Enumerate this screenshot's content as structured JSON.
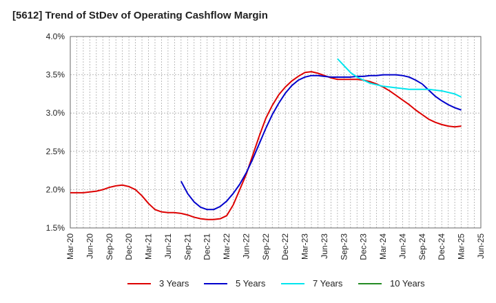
{
  "chart_data": {
    "type": "line",
    "title": "[5612]  Trend of StDev of Operating Cashflow Margin",
    "xlabel": "",
    "ylabel": "",
    "ylim": [
      1.5,
      4.0
    ],
    "y_ticks": [
      "1.5%",
      "2.0%",
      "2.5%",
      "3.0%",
      "3.5%",
      "4.0%"
    ],
    "x_ticks": [
      "Mar-20",
      "Jun-20",
      "Sep-20",
      "Dec-20",
      "Mar-21",
      "Jun-21",
      "Sep-21",
      "Dec-21",
      "Mar-22",
      "Jun-22",
      "Sep-22",
      "Dec-22",
      "Mar-23",
      "Jun-23",
      "Sep-23",
      "Dec-23",
      "Mar-24",
      "Jun-24",
      "Sep-24",
      "Dec-24",
      "Mar-25",
      "Jun-25"
    ],
    "grid": true,
    "legend_position": "bottom",
    "series": [
      {
        "name": "3 Years",
        "color": "#dd0000",
        "points": [
          [
            "2020-03",
            1.96
          ],
          [
            "2020-04",
            1.96
          ],
          [
            "2020-05",
            1.96
          ],
          [
            "2020-06",
            1.97
          ],
          [
            "2020-07",
            1.98
          ],
          [
            "2020-08",
            2.0
          ],
          [
            "2020-09",
            2.03
          ],
          [
            "2020-10",
            2.05
          ],
          [
            "2020-11",
            2.06
          ],
          [
            "2020-12",
            2.04
          ],
          [
            "2021-01",
            2.0
          ],
          [
            "2021-02",
            1.92
          ],
          [
            "2021-03",
            1.82
          ],
          [
            "2021-04",
            1.74
          ],
          [
            "2021-05",
            1.71
          ],
          [
            "2021-06",
            1.7
          ],
          [
            "2021-07",
            1.7
          ],
          [
            "2021-08",
            1.69
          ],
          [
            "2021-09",
            1.67
          ],
          [
            "2021-10",
            1.64
          ],
          [
            "2021-11",
            1.62
          ],
          [
            "2021-12",
            1.61
          ],
          [
            "2022-01",
            1.61
          ],
          [
            "2022-02",
            1.62
          ],
          [
            "2022-03",
            1.66
          ],
          [
            "2022-04",
            1.8
          ],
          [
            "2022-05",
            2.0
          ],
          [
            "2022-06",
            2.2
          ],
          [
            "2022-07",
            2.45
          ],
          [
            "2022-08",
            2.7
          ],
          [
            "2022-09",
            2.93
          ],
          [
            "2022-10",
            3.1
          ],
          [
            "2022-11",
            3.24
          ],
          [
            "2022-12",
            3.34
          ],
          [
            "2023-01",
            3.42
          ],
          [
            "2023-02",
            3.48
          ],
          [
            "2023-03",
            3.53
          ],
          [
            "2023-04",
            3.54
          ],
          [
            "2023-05",
            3.52
          ],
          [
            "2023-06",
            3.49
          ],
          [
            "2023-07",
            3.46
          ],
          [
            "2023-08",
            3.44
          ],
          [
            "2023-09",
            3.44
          ],
          [
            "2023-10",
            3.44
          ],
          [
            "2023-11",
            3.44
          ],
          [
            "2023-12",
            3.43
          ],
          [
            "2024-01",
            3.41
          ],
          [
            "2024-02",
            3.38
          ],
          [
            "2024-03",
            3.34
          ],
          [
            "2024-04",
            3.29
          ],
          [
            "2024-05",
            3.23
          ],
          [
            "2024-06",
            3.17
          ],
          [
            "2024-07",
            3.11
          ],
          [
            "2024-08",
            3.04
          ],
          [
            "2024-09",
            2.98
          ],
          [
            "2024-10",
            2.92
          ],
          [
            "2024-11",
            2.88
          ],
          [
            "2024-12",
            2.85
          ],
          [
            "2025-01",
            2.83
          ],
          [
            "2025-02",
            2.82
          ],
          [
            "2025-03",
            2.83
          ]
        ]
      },
      {
        "name": "5 Years",
        "color": "#0000cc",
        "points": [
          [
            "2021-08",
            2.11
          ],
          [
            "2021-09",
            1.95
          ],
          [
            "2021-10",
            1.84
          ],
          [
            "2021-11",
            1.77
          ],
          [
            "2021-12",
            1.74
          ],
          [
            "2022-01",
            1.74
          ],
          [
            "2022-02",
            1.78
          ],
          [
            "2022-03",
            1.85
          ],
          [
            "2022-04",
            1.95
          ],
          [
            "2022-05",
            2.07
          ],
          [
            "2022-06",
            2.22
          ],
          [
            "2022-07",
            2.4
          ],
          [
            "2022-08",
            2.6
          ],
          [
            "2022-09",
            2.8
          ],
          [
            "2022-10",
            2.98
          ],
          [
            "2022-11",
            3.13
          ],
          [
            "2022-12",
            3.26
          ],
          [
            "2023-01",
            3.36
          ],
          [
            "2023-02",
            3.43
          ],
          [
            "2023-03",
            3.47
          ],
          [
            "2023-04",
            3.49
          ],
          [
            "2023-05",
            3.49
          ],
          [
            "2023-06",
            3.48
          ],
          [
            "2023-07",
            3.47
          ],
          [
            "2023-08",
            3.47
          ],
          [
            "2023-09",
            3.47
          ],
          [
            "2023-10",
            3.47
          ],
          [
            "2023-11",
            3.48
          ],
          [
            "2023-12",
            3.48
          ],
          [
            "2024-01",
            3.49
          ],
          [
            "2024-02",
            3.49
          ],
          [
            "2024-03",
            3.5
          ],
          [
            "2024-04",
            3.5
          ],
          [
            "2024-05",
            3.5
          ],
          [
            "2024-06",
            3.49
          ],
          [
            "2024-07",
            3.47
          ],
          [
            "2024-08",
            3.43
          ],
          [
            "2024-09",
            3.38
          ],
          [
            "2024-10",
            3.3
          ],
          [
            "2024-11",
            3.22
          ],
          [
            "2024-12",
            3.16
          ],
          [
            "2025-01",
            3.11
          ],
          [
            "2025-02",
            3.07
          ],
          [
            "2025-03",
            3.04
          ]
        ]
      },
      {
        "name": "7 Years",
        "color": "#00e5ee",
        "points": [
          [
            "2023-08",
            3.71
          ],
          [
            "2023-09",
            3.62
          ],
          [
            "2023-10",
            3.53
          ],
          [
            "2023-11",
            3.47
          ],
          [
            "2023-12",
            3.43
          ],
          [
            "2024-01",
            3.39
          ],
          [
            "2024-02",
            3.37
          ],
          [
            "2024-03",
            3.35
          ],
          [
            "2024-04",
            3.34
          ],
          [
            "2024-05",
            3.33
          ],
          [
            "2024-06",
            3.32
          ],
          [
            "2024-07",
            3.31
          ],
          [
            "2024-08",
            3.31
          ],
          [
            "2024-09",
            3.31
          ],
          [
            "2024-10",
            3.31
          ],
          [
            "2024-11",
            3.3
          ],
          [
            "2024-12",
            3.29
          ],
          [
            "2025-01",
            3.27
          ],
          [
            "2025-02",
            3.25
          ],
          [
            "2025-03",
            3.21
          ]
        ]
      },
      {
        "name": "10 Years",
        "color": "#228b22",
        "points": []
      }
    ]
  }
}
